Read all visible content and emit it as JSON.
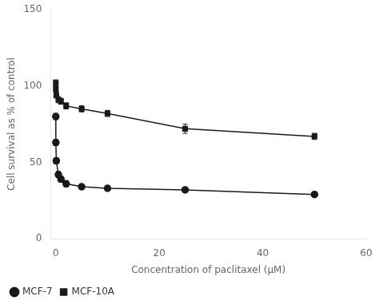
{
  "chart_data": {
    "type": "line",
    "x": [
      0,
      0.01,
      0.1,
      0.5,
      1,
      2,
      5,
      10,
      25,
      50
    ],
    "series": [
      {
        "name": "MCF-7",
        "color": "#1a1a1a",
        "marker": "circle",
        "line_style": "solid",
        "values": [
          80,
          63,
          51,
          42,
          39,
          36,
          34,
          33,
          32,
          29
        ],
        "yerr": [
          2,
          2,
          2,
          2,
          2,
          2,
          1.5,
          1.5,
          1.5,
          1.5
        ]
      },
      {
        "name": "MCF-10A",
        "color": "#1a1a1a",
        "marker": "square",
        "line_style": "solid",
        "values": [
          102,
          98,
          94,
          91,
          90,
          87,
          85,
          82,
          72,
          67
        ],
        "yerr": [
          2,
          2,
          2,
          2,
          2,
          2,
          2,
          2,
          3,
          2
        ]
      }
    ],
    "xlabel": "Concentration of paclitaxel (μM)",
    "ylabel": "Cell survival as % of control",
    "xlim": [
      -1,
      60
    ],
    "ylim": [
      0,
      150
    ],
    "xticks": [
      0,
      20,
      40,
      60
    ],
    "yticks": [
      0,
      50,
      100,
      150
    ],
    "grid": false,
    "legend": "lower left"
  }
}
